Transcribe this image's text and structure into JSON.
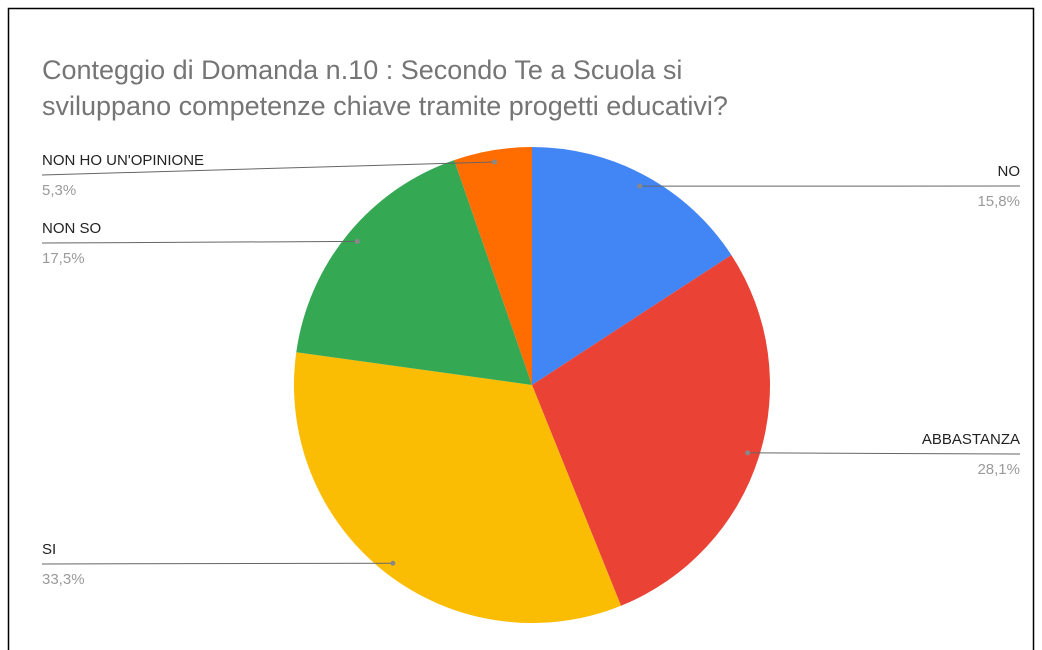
{
  "chart_data": {
    "type": "pie",
    "title": [
      "Conteggio di Domanda n.10 : Secondo Te a Scuola si",
      "sviluppano competenze chiave tramite progetti educativi?"
    ],
    "categories": [
      "NO",
      "ABBASTANZA",
      "SI",
      "NON SO",
      "NON HO UN'OPINIONE"
    ],
    "values": [
      15.8,
      28.1,
      33.3,
      17.5,
      5.3
    ],
    "value_labels": [
      "15,8%",
      "28,1%",
      "33,3%",
      "17,5%",
      "5,3%"
    ],
    "colors": [
      "#4285f4",
      "#ea4335",
      "#fbbc04",
      "#34a853",
      "#ff6d01"
    ]
  }
}
